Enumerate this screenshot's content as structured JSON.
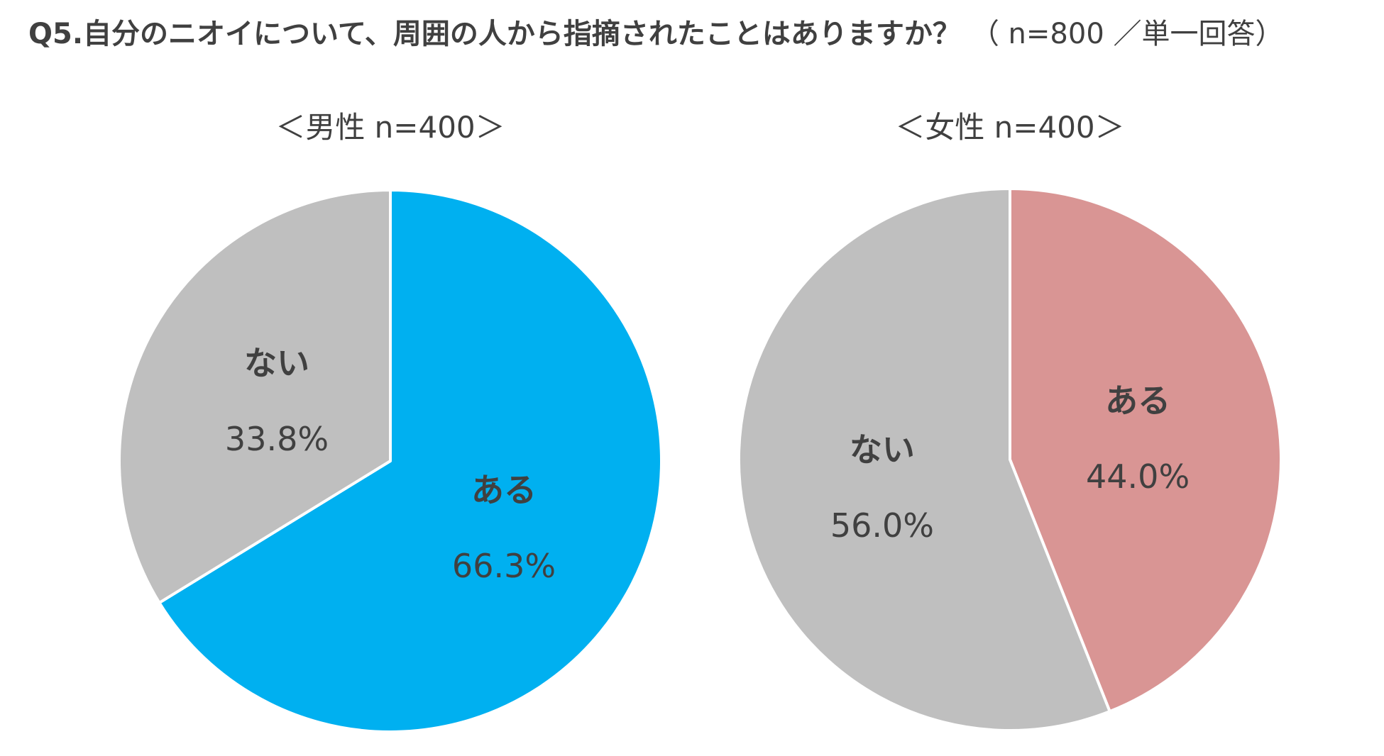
{
  "title": {
    "question": "Q5.自分のニオイについて、周囲の人から指摘されたことはありますか？",
    "sample": "（ n=800 ／単一回答）"
  },
  "chart_data": [
    {
      "type": "pie",
      "title": "＜男性 n=400＞",
      "slices": [
        {
          "label": "ある",
          "value": 66.3,
          "value_label": "66.3%",
          "color": "#00B0F0"
        },
        {
          "label": "ない",
          "value": 33.8,
          "value_label": "33.8%",
          "color": "#BFBFBF"
        }
      ]
    },
    {
      "type": "pie",
      "title": "＜女性 n=400＞",
      "slices": [
        {
          "label": "ある",
          "value": 44.0,
          "value_label": "44.0%",
          "color": "#D99594"
        },
        {
          "label": "ない",
          "value": 56.0,
          "value_label": "56.0%",
          "color": "#BFBFBF"
        }
      ]
    }
  ]
}
